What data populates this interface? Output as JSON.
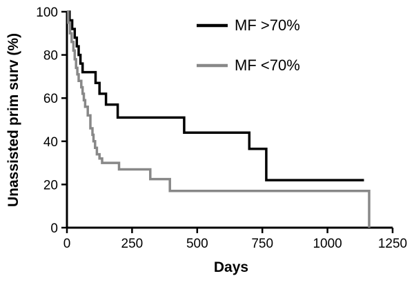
{
  "chart_data": {
    "type": "line",
    "title": "",
    "xlabel": "Days",
    "ylabel": "Unassisted prim surv (%)",
    "xlim": [
      0,
      1250
    ],
    "ylim": [
      0,
      100
    ],
    "xticks": [
      "0",
      "250",
      "500",
      "750",
      "1000",
      "1250"
    ],
    "yticks": [
      "0",
      "20",
      "40",
      "60",
      "80",
      "100"
    ],
    "grid": false,
    "legend_position": "top-right",
    "series": [
      {
        "name": "MF >70%",
        "color": "#000000",
        "points": [
          [
            0,
            100
          ],
          [
            10,
            100
          ],
          [
            10,
            96
          ],
          [
            20,
            96
          ],
          [
            20,
            92
          ],
          [
            30,
            92
          ],
          [
            30,
            88
          ],
          [
            38,
            88
          ],
          [
            38,
            84
          ],
          [
            45,
            84
          ],
          [
            45,
            80
          ],
          [
            52,
            80
          ],
          [
            52,
            76
          ],
          [
            60,
            76
          ],
          [
            60,
            72
          ],
          [
            110,
            72
          ],
          [
            110,
            67
          ],
          [
            125,
            67
          ],
          [
            125,
            62
          ],
          [
            150,
            62
          ],
          [
            150,
            57
          ],
          [
            195,
            57
          ],
          [
            195,
            51
          ],
          [
            450,
            51
          ],
          [
            450,
            44
          ],
          [
            700,
            44
          ],
          [
            700,
            36.5
          ],
          [
            765,
            36.5
          ],
          [
            765,
            22
          ],
          [
            1140,
            22
          ]
        ]
      },
      {
        "name": "MF <70%",
        "color": "#888888",
        "points": [
          [
            0,
            100
          ],
          [
            5,
            100
          ],
          [
            5,
            95
          ],
          [
            12,
            95
          ],
          [
            12,
            90
          ],
          [
            18,
            90
          ],
          [
            18,
            86
          ],
          [
            25,
            86
          ],
          [
            25,
            82
          ],
          [
            30,
            82
          ],
          [
            30,
            78
          ],
          [
            35,
            78
          ],
          [
            35,
            74
          ],
          [
            40,
            74
          ],
          [
            40,
            71
          ],
          [
            45,
            71
          ],
          [
            45,
            68
          ],
          [
            55,
            68
          ],
          [
            55,
            65
          ],
          [
            60,
            65
          ],
          [
            60,
            62
          ],
          [
            65,
            62
          ],
          [
            65,
            59
          ],
          [
            70,
            59
          ],
          [
            70,
            56
          ],
          [
            80,
            56
          ],
          [
            80,
            52
          ],
          [
            90,
            52
          ],
          [
            90,
            46
          ],
          [
            98,
            46
          ],
          [
            98,
            43
          ],
          [
            102,
            43
          ],
          [
            102,
            40
          ],
          [
            108,
            40
          ],
          [
            108,
            37
          ],
          [
            115,
            37
          ],
          [
            115,
            34
          ],
          [
            125,
            34
          ],
          [
            125,
            32
          ],
          [
            135,
            32
          ],
          [
            135,
            30
          ],
          [
            200,
            30
          ],
          [
            200,
            27
          ],
          [
            320,
            27
          ],
          [
            320,
            22.5
          ],
          [
            395,
            22.5
          ],
          [
            395,
            17
          ],
          [
            1160,
            17
          ],
          [
            1160,
            0
          ]
        ]
      }
    ]
  }
}
